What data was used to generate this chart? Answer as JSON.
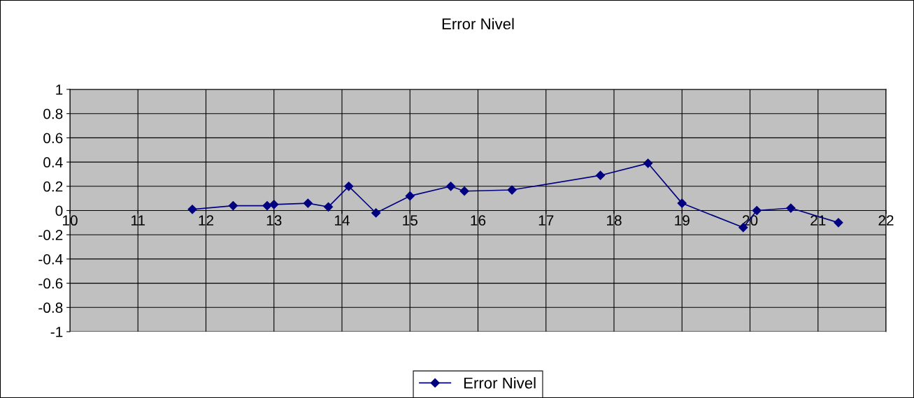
{
  "chart_data": {
    "type": "line",
    "title": "Error Nivel",
    "x": [
      11.8,
      12.4,
      12.9,
      13.0,
      13.5,
      13.8,
      14.1,
      14.5,
      15.0,
      15.6,
      15.8,
      16.5,
      17.8,
      18.5,
      19.0,
      19.9,
      20.1,
      20.6,
      21.3
    ],
    "series": [
      {
        "name": "Error Nivel",
        "color": "#000080",
        "values": [
          0.01,
          0.04,
          0.04,
          0.05,
          0.06,
          0.03,
          0.2,
          -0.02,
          0.12,
          0.2,
          0.16,
          0.17,
          0.29,
          0.39,
          0.06,
          -0.14,
          0.0,
          0.02,
          -0.1
        ]
      }
    ],
    "xlim": [
      10,
      22
    ],
    "xticks": [
      10,
      11,
      12,
      13,
      14,
      15,
      16,
      17,
      18,
      19,
      20,
      21,
      22
    ],
    "ylim": [
      -1,
      1
    ],
    "yticks": [
      -1,
      -0.8,
      -0.6,
      -0.4,
      -0.2,
      0,
      0.2,
      0.4,
      0.6,
      0.8,
      1
    ],
    "grid": true,
    "legend": "bottom",
    "marker": "diamond",
    "line_style": "solid"
  }
}
